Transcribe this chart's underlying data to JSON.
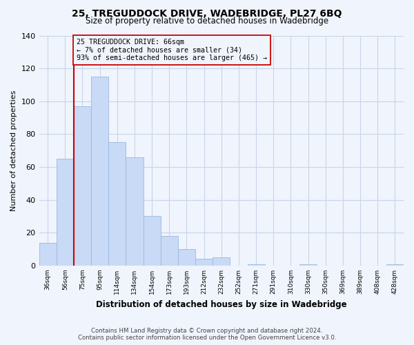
{
  "title": "25, TREGUDDOCK DRIVE, WADEBRIDGE, PL27 6BQ",
  "subtitle": "Size of property relative to detached houses in Wadebridge",
  "xlabel": "Distribution of detached houses by size in Wadebridge",
  "ylabel": "Number of detached properties",
  "bar_color": "#c8daf5",
  "bar_edge_color": "#9ab8e0",
  "bin_labels": [
    "36sqm",
    "56sqm",
    "75sqm",
    "95sqm",
    "114sqm",
    "134sqm",
    "154sqm",
    "173sqm",
    "193sqm",
    "212sqm",
    "232sqm",
    "252sqm",
    "271sqm",
    "291sqm",
    "310sqm",
    "330sqm",
    "350sqm",
    "369sqm",
    "389sqm",
    "408sqm",
    "428sqm"
  ],
  "bar_heights": [
    14,
    65,
    97,
    115,
    75,
    66,
    30,
    18,
    10,
    4,
    5,
    0,
    1,
    0,
    0,
    1,
    0,
    0,
    0,
    0,
    1
  ],
  "ylim": [
    0,
    140
  ],
  "yticks": [
    0,
    20,
    40,
    60,
    80,
    100,
    120,
    140
  ],
  "vline_x_idx": 1.5,
  "annotation_line1": "25 TREGUDDOCK DRIVE: 66sqm",
  "annotation_line2": "← 7% of detached houses are smaller (34)",
  "annotation_line3": "93% of semi-detached houses are larger (465) →",
  "vline_color": "#cc0000",
  "annotation_box_edge_color": "#cc0000",
  "footer_line1": "Contains HM Land Registry data © Crown copyright and database right 2024.",
  "footer_line2": "Contains public sector information licensed under the Open Government Licence v3.0.",
  "bg_color": "#f0f4fc",
  "grid_color": "#c8d4e8"
}
